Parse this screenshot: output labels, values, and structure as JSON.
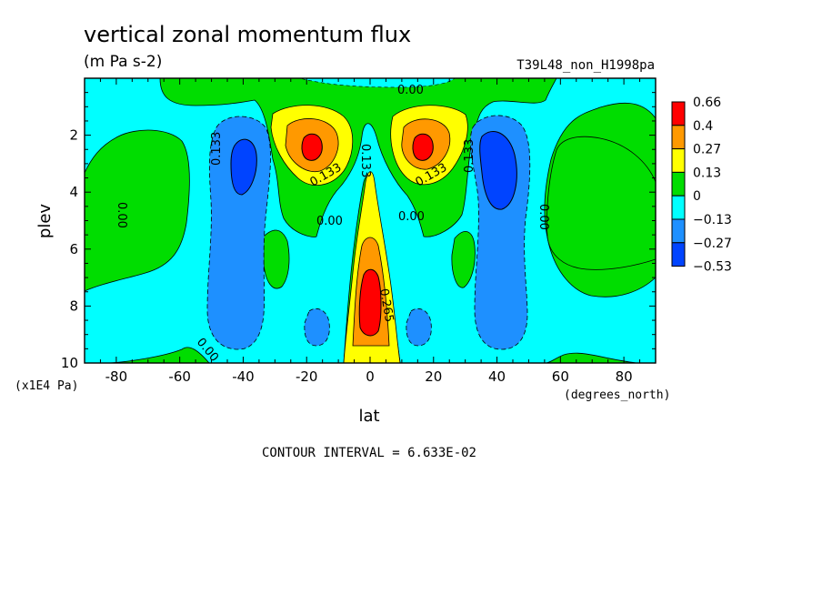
{
  "chart_data": {
    "type": "heatmap",
    "title": "vertical zonal momentum flux",
    "units": "(m Pa s-2)",
    "run_label": "T39L48_non_H1998pa",
    "xlabel": "lat",
    "x_units": "(degrees_north)",
    "ylabel": "plev",
    "y_units": "(x1E4 Pa)",
    "xlim": [
      -90,
      90
    ],
    "ylim": [
      10,
      0
    ],
    "x_ticks": [
      -80,
      -60,
      -40,
      -20,
      0,
      20,
      40,
      60,
      80
    ],
    "x_tick_labels": [
      "-80",
      "-60",
      "-40",
      "-20",
      "0",
      "20",
      "40",
      "60",
      "80"
    ],
    "y_ticks": [
      2,
      4,
      6,
      8,
      10
    ],
    "y_tick_labels": [
      "2",
      "4",
      "6",
      "8",
      "10"
    ],
    "contour_interval_text": "CONTOUR INTERVAL = 6.633E-02",
    "colorbar": {
      "labels": [
        "0.66",
        "0.4",
        "0.27",
        "0.13",
        "0",
        "−0.13",
        "−0.27",
        "−0.53"
      ],
      "colors": [
        "#ff0000",
        "#ff9900",
        "#ffff00",
        "#00dd00",
        "#00ffff",
        "#1e90ff",
        "#0044ff"
      ]
    },
    "contour_labels": [
      "0.00",
      "0.133",
      "0.133",
      "0.133",
      "0.133",
      "0.133",
      "0.00",
      "0.00",
      "0.00",
      "0.00",
      "0.00",
      "0.265"
    ],
    "features": [
      {
        "kind": "max",
        "lat": -18,
        "plev": 2.5,
        "value_band": ">0.4"
      },
      {
        "kind": "max",
        "lat": 17,
        "plev": 2.5,
        "value_band": ">0.4"
      },
      {
        "kind": "max",
        "lat": 0,
        "plev": 8.0,
        "value_band": ">0.4"
      },
      {
        "kind": "min",
        "lat": -40,
        "plev": 3.2,
        "value_band": "<-0.27"
      },
      {
        "kind": "min",
        "lat": 40,
        "plev": 3.3,
        "value_band": "<-0.27"
      },
      {
        "kind": "min",
        "lat": -18,
        "plev": 8.8,
        "value_band": "-0.27 to -0.13"
      },
      {
        "kind": "min",
        "lat": 16,
        "plev": 8.8,
        "value_band": "-0.27 to -0.13"
      }
    ]
  }
}
